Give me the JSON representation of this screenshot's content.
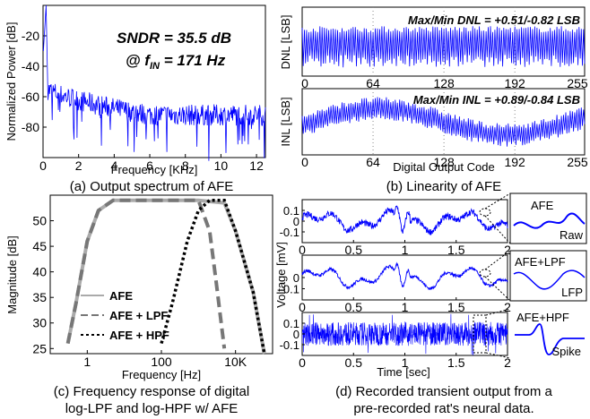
{
  "chart_data": [
    {
      "id": "a",
      "type": "line",
      "caption": "(a) Output spectrum of AFE",
      "xlabel": "Frequency [KHz]",
      "ylabel": "Normalized Power [dB]",
      "xlim": [
        0,
        12.5
      ],
      "ylim": [
        -100,
        0
      ],
      "xticks": [
        0,
        2,
        4,
        6,
        8,
        10,
        12
      ],
      "yticks": [
        -20,
        -40,
        -60,
        -80
      ],
      "annotation_line1": "SNDR = 35.5 dB",
      "annotation_line2_prefix": "@ f",
      "annotation_line2_sub": "IN",
      "annotation_line2_suffix": " = 171 Hz",
      "color": "#0000ff",
      "noise_floor_db": [
        -52,
        -72
      ],
      "peak": {
        "x": 0.171,
        "y": 0
      }
    },
    {
      "id": "b",
      "type": "line",
      "caption": "(b) Linearity of AFE",
      "xlabel": "Digital Output Code",
      "panels": [
        {
          "ylabel": "DNL [LSB]",
          "annotation": "Max/Min DNL = +0.51/-0.82 LSB",
          "xlim": [
            0,
            255
          ],
          "ylim": [
            -1,
            1
          ],
          "xticks": [
            0,
            64,
            128,
            192,
            255
          ]
        },
        {
          "ylabel": "INL [LSB]",
          "annotation": "Max/Min INL = +0.89/-0.84 LSB",
          "xlim": [
            0,
            255
          ],
          "ylim": [
            -1,
            1
          ],
          "xticks": [
            0,
            64,
            128,
            192,
            255
          ]
        }
      ],
      "dnl_range": [
        -0.82,
        0.51
      ],
      "inl_range": [
        -0.84,
        0.89
      ],
      "color": "#0000ff"
    },
    {
      "id": "c",
      "type": "line",
      "caption_line1": "(c) Frequency response of digital",
      "caption_line2": "log-LPF and log-HPF w/ AFE",
      "xlabel": "Frequency [Hz]",
      "ylabel": "Magnitude [dB]",
      "xscale": "log",
      "xlim": [
        0.1,
        100000
      ],
      "ylim": [
        24,
        55
      ],
      "xtick_values": [
        1,
        100,
        10000
      ],
      "xtick_labels": [
        "1",
        "100",
        "10K"
      ],
      "yticks": [
        25,
        30,
        35,
        40,
        45,
        50
      ],
      "series": [
        {
          "name": "AFE",
          "style": "solid",
          "color": "#aaaaaa",
          "x": [
            0.3,
            0.5,
            1,
            2,
            5,
            10,
            100,
            1000,
            5000,
            10000,
            30000,
            60000
          ],
          "y": [
            26,
            34,
            46,
            52,
            54,
            54,
            54,
            54,
            53.5,
            48,
            36,
            24
          ]
        },
        {
          "name": "AFE + LPF",
          "style": "dashed",
          "color": "#777777",
          "x": [
            0.3,
            0.5,
            1,
            2,
            5,
            10,
            100,
            1000,
            2000,
            3000,
            5000
          ],
          "y": [
            26,
            34,
            46,
            52,
            54,
            54,
            54,
            54,
            48,
            38,
            25
          ]
        },
        {
          "name": "AFE + HPF",
          "style": "dotted",
          "color": "#000000",
          "x": [
            100,
            200,
            500,
            1000,
            2000,
            5000,
            10000,
            30000,
            60000
          ],
          "y": [
            26,
            34,
            46,
            52,
            54,
            54,
            48,
            36,
            24
          ]
        }
      ]
    },
    {
      "id": "d",
      "type": "line",
      "caption_line1": "(d) Recorded transient output from a",
      "caption_line2": "pre-recorded rat's neural data.",
      "xlabel": "Time [sec]",
      "ylabel": "Voltage [mV]",
      "xlim": [
        0,
        2
      ],
      "xticks": [
        0,
        0.5,
        1,
        1.5,
        2
      ],
      "xtick_labels": [
        "0",
        "0.5",
        "1",
        "1.5",
        "2"
      ],
      "color": "#0000ff",
      "panels": [
        {
          "ylim": [
            -0.2,
            0.2
          ],
          "ytick_values": [
            0.1,
            0,
            -0.1
          ],
          "ytick_labels": [
            "0.1",
            "0",
            "-0.1"
          ],
          "inset_title": "AFE",
          "inset_label": "Raw"
        },
        {
          "ylim": [
            -0.2,
            0.2
          ],
          "ytick_values": [
            0,
            -0.1
          ],
          "ytick_labels": [
            "0",
            "-0.1"
          ],
          "inset_title": "AFE+LPF",
          "inset_label": "LFP"
        },
        {
          "ylim": [
            -0.2,
            0.2
          ],
          "ytick_values": [
            0.1,
            0,
            -0.1
          ],
          "ytick_labels": [
            "0.1",
            "0",
            "-0.1"
          ],
          "inset_title": "AFE+HPF",
          "inset_label": "Spike"
        }
      ]
    }
  ]
}
